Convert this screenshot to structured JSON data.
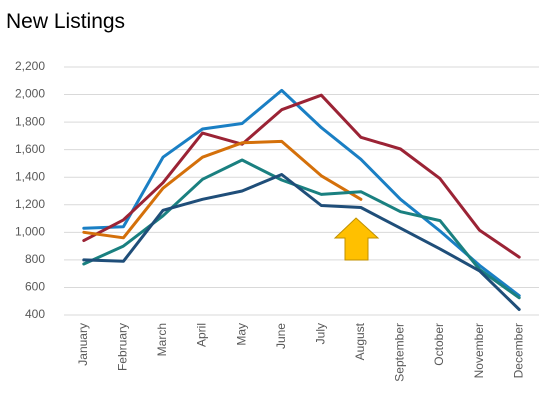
{
  "chart_data": {
    "type": "line",
    "title": "New Listings",
    "categories": [
      "January",
      "February",
      "March",
      "April",
      "May",
      "June",
      "July",
      "August",
      "September",
      "October",
      "November",
      "December"
    ],
    "series": [
      {
        "color": "#1a7fc4",
        "values": [
          1030,
          1040,
          1545,
          1750,
          1790,
          2030,
          1760,
          1530,
          1240,
          1010,
          760,
          540
        ]
      },
      {
        "color": "#9b2335",
        "values": [
          940,
          1090,
          1360,
          1720,
          1640,
          1890,
          1995,
          1690,
          1605,
          1390,
          1015,
          820
        ]
      },
      {
        "color": "#d4700a",
        "values": [
          1000,
          960,
          1320,
          1545,
          1650,
          1660,
          1410,
          1240,
          null,
          null,
          null,
          null
        ]
      },
      {
        "color": "#1a8080",
        "values": [
          770,
          900,
          1120,
          1385,
          1525,
          1380,
          1275,
          1295,
          1150,
          1085,
          730,
          525
        ]
      },
      {
        "color": "#1f4e79",
        "values": [
          800,
          790,
          1160,
          1240,
          1300,
          1420,
          1195,
          1180,
          1030,
          880,
          720,
          440
        ]
      }
    ],
    "ylim": [
      400,
      2200
    ],
    "yticks": [
      400,
      600,
      800,
      {
        "value": 1000,
        "label": "1,000"
      },
      {
        "value": 1200,
        "label": "1,200"
      },
      {
        "value": 1400,
        "label": "1,400"
      },
      {
        "value": 1600,
        "label": "1,600"
      },
      {
        "value": 1800,
        "label": "1,800"
      },
      {
        "value": 2000,
        "label": "2,000"
      },
      {
        "value": 2200,
        "label": "2,200"
      }
    ],
    "grid": true
  }
}
